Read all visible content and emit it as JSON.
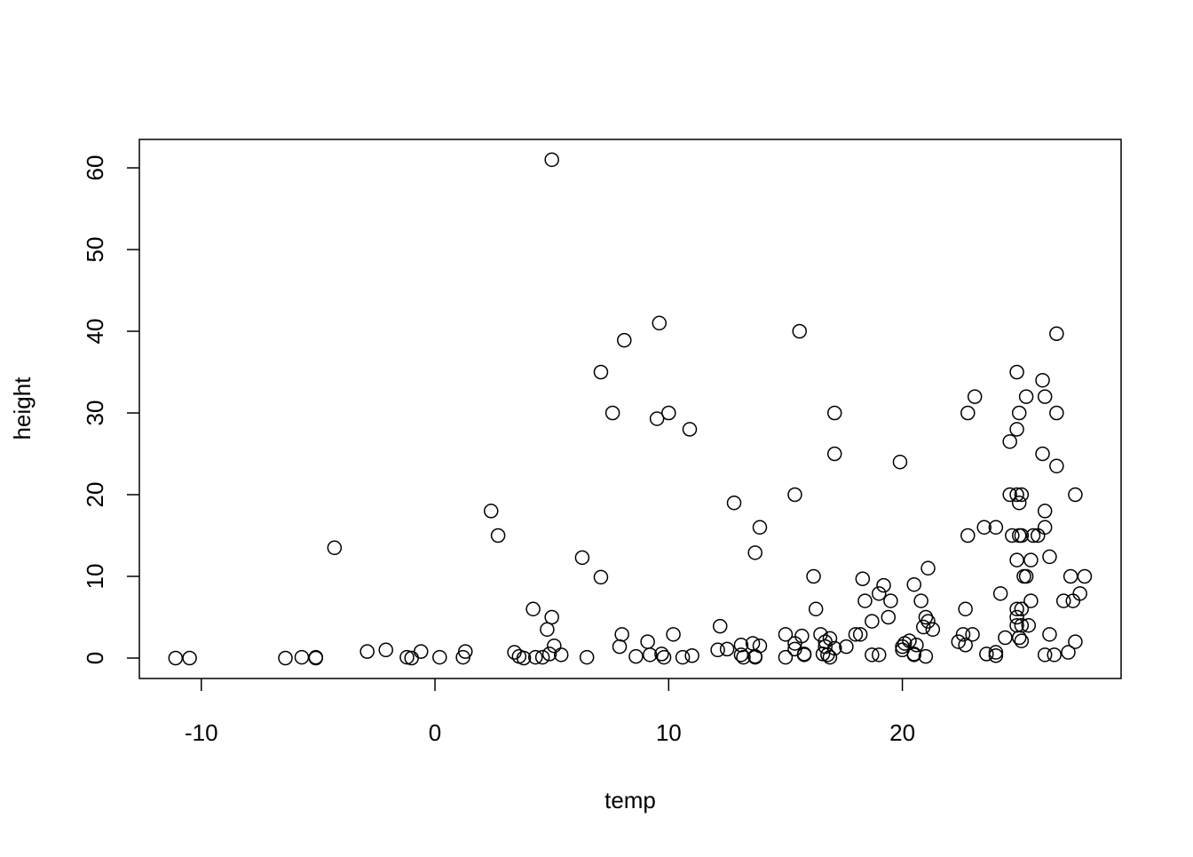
{
  "chart_data": {
    "type": "scatter",
    "x_label": "temp",
    "y_label": "height",
    "x": [
      -11.1,
      -10.5,
      -6.4,
      -5.7,
      -5.1,
      -5.1,
      -4.3,
      -2.9,
      -2.1,
      -1.2,
      -1.0,
      -0.6,
      0.2,
      1.2,
      1.3,
      2.4,
      2.7,
      3.4,
      3.6,
      3.8,
      4.2,
      4.3,
      4.6,
      4.8,
      4.9,
      5.0,
      5.0,
      5.1,
      5.4,
      6.3,
      6.5,
      7.1,
      7.1,
      7.6,
      7.9,
      8.0,
      8.1,
      8.6,
      9.1,
      9.2,
      9.5,
      9.6,
      9.7,
      9.8,
      10.0,
      10.2,
      10.6,
      10.9,
      11.0,
      12.1,
      12.2,
      12.5,
      12.8,
      13.1,
      13.1,
      13.2,
      13.6,
      13.7,
      13.7,
      13.7,
      13.9,
      13.9,
      15.0,
      15.0,
      15.4,
      15.4,
      15.4,
      15.6,
      15.7,
      15.8,
      15.8,
      16.2,
      16.3,
      16.5,
      16.6,
      16.7,
      16.7,
      16.8,
      16.9,
      16.9,
      17.1,
      17.1,
      17.1,
      17.6,
      18.0,
      18.2,
      18.3,
      18.4,
      18.7,
      18.7,
      19.0,
      19.0,
      19.2,
      19.4,
      19.5,
      19.9,
      20.0,
      20.0,
      20.1,
      20.3,
      20.5,
      20.5,
      20.5,
      20.6,
      20.8,
      20.9,
      21.0,
      21.0,
      21.1,
      21.1,
      21.3,
      22.4,
      22.6,
      22.7,
      22.7,
      22.8,
      22.8,
      23.0,
      23.1,
      23.5,
      23.6,
      24.0,
      24.0,
      24.0,
      24.2,
      24.4,
      24.6,
      24.6,
      24.7,
      24.9,
      24.9,
      24.9,
      24.9,
      24.9,
      24.9,
      24.9,
      25.0,
      25.0,
      25.0,
      25.0,
      25.1,
      25.1,
      25.1,
      25.1,
      25.1,
      25.2,
      25.3,
      25.3,
      25.4,
      25.5,
      25.5,
      25.6,
      25.8,
      26.0,
      26.0,
      26.1,
      26.1,
      26.1,
      26.1,
      26.3,
      26.3,
      26.5,
      26.6,
      26.6,
      26.6,
      26.9,
      27.1,
      27.2,
      27.3,
      27.4,
      27.4,
      27.6,
      27.8
    ],
    "y": [
      0,
      0,
      0,
      0.1,
      0.1,
      0,
      13.5,
      0.8,
      1,
      0.1,
      0,
      0.8,
      0.1,
      0.1,
      0.8,
      18,
      15,
      0.7,
      0.2,
      0,
      6,
      0.1,
      0.1,
      3.5,
      0.5,
      61,
      5,
      1.5,
      0.4,
      12.3,
      0.1,
      35,
      9.9,
      30,
      1.4,
      2.9,
      38.9,
      0.2,
      2,
      0.4,
      29.3,
      41,
      0.5,
      0.1,
      30,
      2.9,
      0.1,
      28,
      0.3,
      1,
      3.9,
      1.1,
      19,
      1.6,
      0.4,
      0.1,
      1.8,
      12.9,
      0.2,
      0.1,
      16,
      1.5,
      2.9,
      0.1,
      20,
      1.8,
      1.1,
      40,
      2.7,
      0.5,
      0.4,
      10,
      6,
      2.9,
      0.5,
      2,
      1.4,
      0.4,
      0.1,
      2.4,
      30,
      25,
      1.2,
      1.4,
      2.9,
      2.9,
      9.7,
      7,
      4.5,
      0.4,
      7.9,
      0.4,
      8.9,
      5,
      7,
      24,
      1.4,
      1,
      1.8,
      2.1,
      0.5,
      9,
      0.4,
      1.6,
      7,
      3.8,
      0.2,
      5,
      11,
      4.5,
      3.5,
      2,
      2.9,
      1.6,
      6,
      30,
      15,
      2.9,
      32,
      16,
      0.5,
      16,
      0.7,
      0.3,
      7.9,
      2.5,
      26.5,
      20,
      15,
      35,
      28,
      20,
      12,
      6,
      5,
      4,
      2.5,
      30,
      19,
      15,
      6,
      4,
      2.1,
      20,
      15,
      10,
      10,
      32,
      4,
      7,
      12,
      15,
      15,
      34,
      25,
      32,
      18,
      16,
      0.4,
      12.4,
      2.9,
      0.4,
      39.7,
      30,
      23.5,
      7,
      0.7,
      10,
      7,
      20,
      2,
      7.9,
      10
    ],
    "xlim": [
      -12.65,
      29.36
    ],
    "ylim": [
      -2.5,
      63.48
    ],
    "xticks": [
      -10,
      0,
      10,
      20
    ],
    "yticks": [
      0,
      10,
      20,
      30,
      40,
      50,
      60
    ],
    "color": "#000000"
  }
}
